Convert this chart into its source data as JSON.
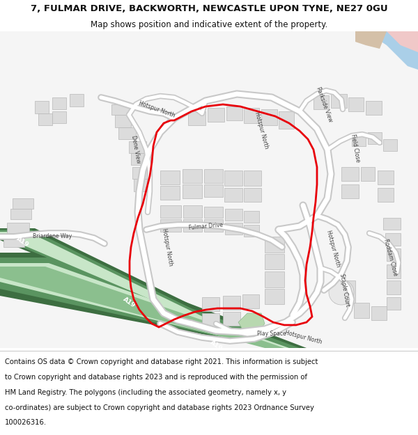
{
  "title_line1": "7, FULMAR DRIVE, BACKWORTH, NEWCASTLE UPON TYNE, NE27 0GU",
  "title_line2": "Map shows position and indicative extent of the property.",
  "footer_lines": [
    "Contains OS data © Crown copyright and database right 2021. This information is subject",
    "to Crown copyright and database rights 2023 and is reproduced with the permission of",
    "HM Land Registry. The polygons (including the associated geometry, namely x, y",
    "co-ordinates) are subject to Crown copyright and database rights 2023 Ordnance Survey",
    "100026316."
  ],
  "title_fontsize": 9.5,
  "subtitle_fontsize": 8.5,
  "footer_fontsize": 7.2,
  "bg_color": "#ffffff",
  "map_bg": "#f0f0f0",
  "road_fg": "#ffffff",
  "road_outline": "#c8c8c8",
  "building_fc": "#dcdcdc",
  "building_ec": "#b8b8b8",
  "a19_dark": "#3d6e41",
  "a19_mid": "#5a9460",
  "a19_light": "#8bbf8e",
  "a19_pale": "#c8e6c8",
  "water_color": "#aacfe8",
  "pink_color": "#f0c8c8",
  "tan_color": "#d4c0a8",
  "red_color": "#e8000a",
  "red_lw": 2.0,
  "label_fontsize": 5.5,
  "label_color": "#404040"
}
